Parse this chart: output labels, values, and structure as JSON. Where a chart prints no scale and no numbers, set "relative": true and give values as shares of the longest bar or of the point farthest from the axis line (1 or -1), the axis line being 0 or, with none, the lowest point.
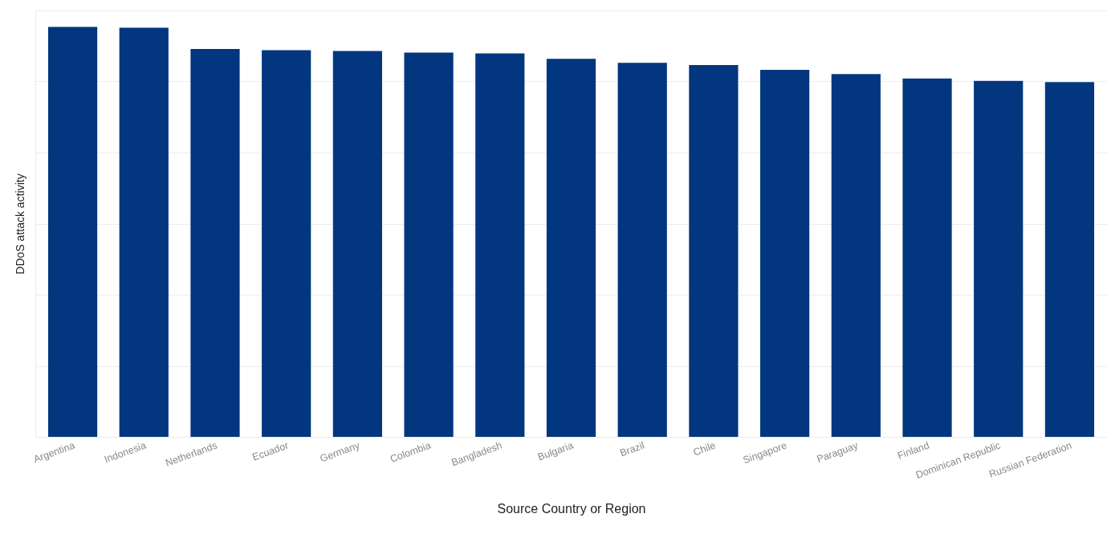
{
  "chart_data": {
    "type": "bar",
    "xlabel": "Source Country or Region",
    "ylabel": "DDoS attack activity",
    "categories": [
      "Argentina",
      "Indonesia",
      "Netherlands",
      "Ecuador",
      "Germany",
      "Colombia",
      "Bangladesh",
      "Bulgaria",
      "Brazil",
      "Chile",
      "Singapore",
      "Paraguay",
      "Finland",
      "Dominican Republic",
      "Russian Federation"
    ],
    "values": [
      1,
      0.998,
      0.946,
      0.943,
      0.941,
      0.937,
      0.935,
      0.922,
      0.912,
      0.907,
      0.895,
      0.885,
      0.874,
      0.868,
      0.865
    ],
    "color": "#02367f",
    "relative": true,
    "grid": "y"
  }
}
